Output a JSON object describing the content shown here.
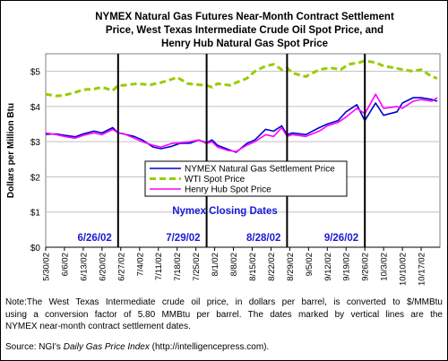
{
  "chart_data": {
    "type": "line",
    "title": [
      "NYMEX Natural Gas Futures Near-Month Contract Settlement",
      "Price, West Texas Intermediate Crude Oil Spot Price, and",
      "Henry Hub Natural Gas Spot Price"
    ],
    "ylabel": "Dollars per Million Btu",
    "xlabel": "",
    "ylim": [
      0,
      5.5
    ],
    "yticks": [
      "$0",
      "$1",
      "$2",
      "$3",
      "$4",
      "$5"
    ],
    "xlim": [
      "2002-05-30",
      "2002-10-24"
    ],
    "xtick_labels": [
      "5/30/02",
      "6/6/02",
      "6/13/02",
      "6/20/02",
      "6/27/02",
      "7/4/02",
      "7/11/02",
      "7/18/02",
      "7/25/02",
      "8/1/02",
      "8/8/02",
      "8/15/02",
      "8/22/02",
      "8/29/02",
      "9/5/02",
      "9/12/02",
      "9/19/02",
      "9/26/02",
      "10/3/02",
      "10/10/02",
      "10/17/02"
    ],
    "grid": "horizontal",
    "legend": "center",
    "closing_dates_label": "Nymex Closing Dates",
    "closing_dates": [
      {
        "date": "2002-06-26",
        "label": "6/26/02"
      },
      {
        "date": "2002-07-29",
        "label": "7/29/02"
      },
      {
        "date": "2002-08-28",
        "label": "8/28/02"
      },
      {
        "date": "2002-09-26",
        "label": "9/26/02"
      }
    ],
    "series": [
      {
        "name": "NYMEX Natural Gas Settlement Price",
        "color": "#0000cc",
        "style": "solid",
        "points": [
          [
            "2002-05-30",
            3.21
          ],
          [
            "2002-06-03",
            3.22
          ],
          [
            "2002-06-06",
            3.18
          ],
          [
            "2002-06-10",
            3.14
          ],
          [
            "2002-06-13",
            3.22
          ],
          [
            "2002-06-17",
            3.3
          ],
          [
            "2002-06-20",
            3.25
          ],
          [
            "2002-06-24",
            3.4
          ],
          [
            "2002-06-26",
            3.25
          ],
          [
            "2002-06-28",
            3.22
          ],
          [
            "2002-07-02",
            3.15
          ],
          [
            "2002-07-05",
            3.05
          ],
          [
            "2002-07-09",
            2.85
          ],
          [
            "2002-07-12",
            2.8
          ],
          [
            "2002-07-16",
            2.87
          ],
          [
            "2002-07-19",
            2.95
          ],
          [
            "2002-07-23",
            2.96
          ],
          [
            "2002-07-26",
            3.05
          ],
          [
            "2002-07-29",
            2.97
          ],
          [
            "2002-07-31",
            3.05
          ],
          [
            "2002-08-02",
            2.9
          ],
          [
            "2002-08-06",
            2.78
          ],
          [
            "2002-08-09",
            2.7
          ],
          [
            "2002-08-13",
            2.95
          ],
          [
            "2002-08-16",
            3.05
          ],
          [
            "2002-08-20",
            3.35
          ],
          [
            "2002-08-23",
            3.3
          ],
          [
            "2002-08-26",
            3.45
          ],
          [
            "2002-08-28",
            3.2
          ],
          [
            "2002-08-30",
            3.25
          ],
          [
            "2002-09-04",
            3.2
          ],
          [
            "2002-09-09",
            3.4
          ],
          [
            "2002-09-12",
            3.5
          ],
          [
            "2002-09-16",
            3.6
          ],
          [
            "2002-09-19",
            3.85
          ],
          [
            "2002-09-23",
            4.05
          ],
          [
            "2002-09-26",
            3.6
          ],
          [
            "2002-09-30",
            4.1
          ],
          [
            "2002-10-03",
            3.75
          ],
          [
            "2002-10-08",
            3.85
          ],
          [
            "2002-10-10",
            4.1
          ],
          [
            "2002-10-14",
            4.25
          ],
          [
            "2002-10-17",
            4.25
          ],
          [
            "2002-10-21",
            4.2
          ],
          [
            "2002-10-23",
            4.15
          ]
        ]
      },
      {
        "name": "WTI Spot Price",
        "color": "#99cc00",
        "style": "dashed",
        "points": [
          [
            "2002-05-30",
            4.35
          ],
          [
            "2002-06-03",
            4.3
          ],
          [
            "2002-06-06",
            4.32
          ],
          [
            "2002-06-10",
            4.4
          ],
          [
            "2002-06-13",
            4.48
          ],
          [
            "2002-06-17",
            4.5
          ],
          [
            "2002-06-20",
            4.55
          ],
          [
            "2002-06-24",
            4.45
          ],
          [
            "2002-06-26",
            4.6
          ],
          [
            "2002-06-28",
            4.6
          ],
          [
            "2002-07-03",
            4.65
          ],
          [
            "2002-07-08",
            4.62
          ],
          [
            "2002-07-12",
            4.68
          ],
          [
            "2002-07-15",
            4.75
          ],
          [
            "2002-07-18",
            4.83
          ],
          [
            "2002-07-22",
            4.65
          ],
          [
            "2002-07-26",
            4.62
          ],
          [
            "2002-07-29",
            4.6
          ],
          [
            "2002-07-31",
            4.55
          ],
          [
            "2002-08-02",
            4.65
          ],
          [
            "2002-08-07",
            4.6
          ],
          [
            "2002-08-09",
            4.68
          ],
          [
            "2002-08-13",
            4.8
          ],
          [
            "2002-08-16",
            5.0
          ],
          [
            "2002-08-20",
            5.15
          ],
          [
            "2002-08-23",
            5.2
          ],
          [
            "2002-08-26",
            5.05
          ],
          [
            "2002-08-28",
            5.1
          ],
          [
            "2002-08-30",
            4.95
          ],
          [
            "2002-09-04",
            4.85
          ],
          [
            "2002-09-09",
            5.05
          ],
          [
            "2002-09-13",
            5.1
          ],
          [
            "2002-09-17",
            5.05
          ],
          [
            "2002-09-20",
            5.2
          ],
          [
            "2002-09-24",
            5.25
          ],
          [
            "2002-09-26",
            5.3
          ],
          [
            "2002-09-30",
            5.25
          ],
          [
            "2002-10-03",
            5.15
          ],
          [
            "2002-10-07",
            5.1
          ],
          [
            "2002-10-10",
            5.05
          ],
          [
            "2002-10-14",
            5.0
          ],
          [
            "2002-10-17",
            5.05
          ],
          [
            "2002-10-21",
            4.85
          ],
          [
            "2002-10-23",
            4.8
          ]
        ]
      },
      {
        "name": "Henry Hub Spot Price",
        "color": "#ff00ff",
        "style": "solid",
        "points": [
          [
            "2002-05-30",
            3.25
          ],
          [
            "2002-06-03",
            3.2
          ],
          [
            "2002-06-06",
            3.15
          ],
          [
            "2002-06-10",
            3.1
          ],
          [
            "2002-06-13",
            3.18
          ],
          [
            "2002-06-17",
            3.25
          ],
          [
            "2002-06-20",
            3.2
          ],
          [
            "2002-06-24",
            3.35
          ],
          [
            "2002-06-26",
            3.25
          ],
          [
            "2002-06-28",
            3.23
          ],
          [
            "2002-07-02",
            3.1
          ],
          [
            "2002-07-05",
            3.0
          ],
          [
            "2002-07-09",
            2.9
          ],
          [
            "2002-07-12",
            2.85
          ],
          [
            "2002-07-16",
            2.95
          ],
          [
            "2002-07-19",
            2.97
          ],
          [
            "2002-07-23",
            3.0
          ],
          [
            "2002-07-26",
            3.05
          ],
          [
            "2002-07-29",
            2.95
          ],
          [
            "2002-07-31",
            3.0
          ],
          [
            "2002-08-02",
            2.85
          ],
          [
            "2002-08-06",
            2.75
          ],
          [
            "2002-08-09",
            2.72
          ],
          [
            "2002-08-13",
            2.9
          ],
          [
            "2002-08-16",
            3.0
          ],
          [
            "2002-08-20",
            3.2
          ],
          [
            "2002-08-23",
            3.15
          ],
          [
            "2002-08-26",
            3.4
          ],
          [
            "2002-08-28",
            3.15
          ],
          [
            "2002-08-30",
            3.2
          ],
          [
            "2002-09-04",
            3.15
          ],
          [
            "2002-09-09",
            3.3
          ],
          [
            "2002-09-12",
            3.45
          ],
          [
            "2002-09-16",
            3.55
          ],
          [
            "2002-09-19",
            3.7
          ],
          [
            "2002-09-23",
            3.95
          ],
          [
            "2002-09-26",
            3.8
          ],
          [
            "2002-09-30",
            4.35
          ],
          [
            "2002-10-03",
            3.95
          ],
          [
            "2002-10-08",
            4.0
          ],
          [
            "2002-10-10",
            3.95
          ],
          [
            "2002-10-14",
            4.15
          ],
          [
            "2002-10-17",
            4.2
          ],
          [
            "2002-10-21",
            4.15
          ],
          [
            "2002-10-23",
            4.25
          ]
        ]
      }
    ]
  },
  "note": [
    "Note:The West Texas Intermediate crude oil price, in dollars per barrel, is converted to $/MMBtu",
    "using a conversion factor of 5.80 MMBtu per barrel. The dates marked by vertical lines are the",
    "NYMEX near-month contract settlement dates."
  ],
  "source": {
    "prefix": "Source: NGI's ",
    "title": "Daily Gas Price Index",
    "suffix": " (http://intelligencepress.com)."
  }
}
